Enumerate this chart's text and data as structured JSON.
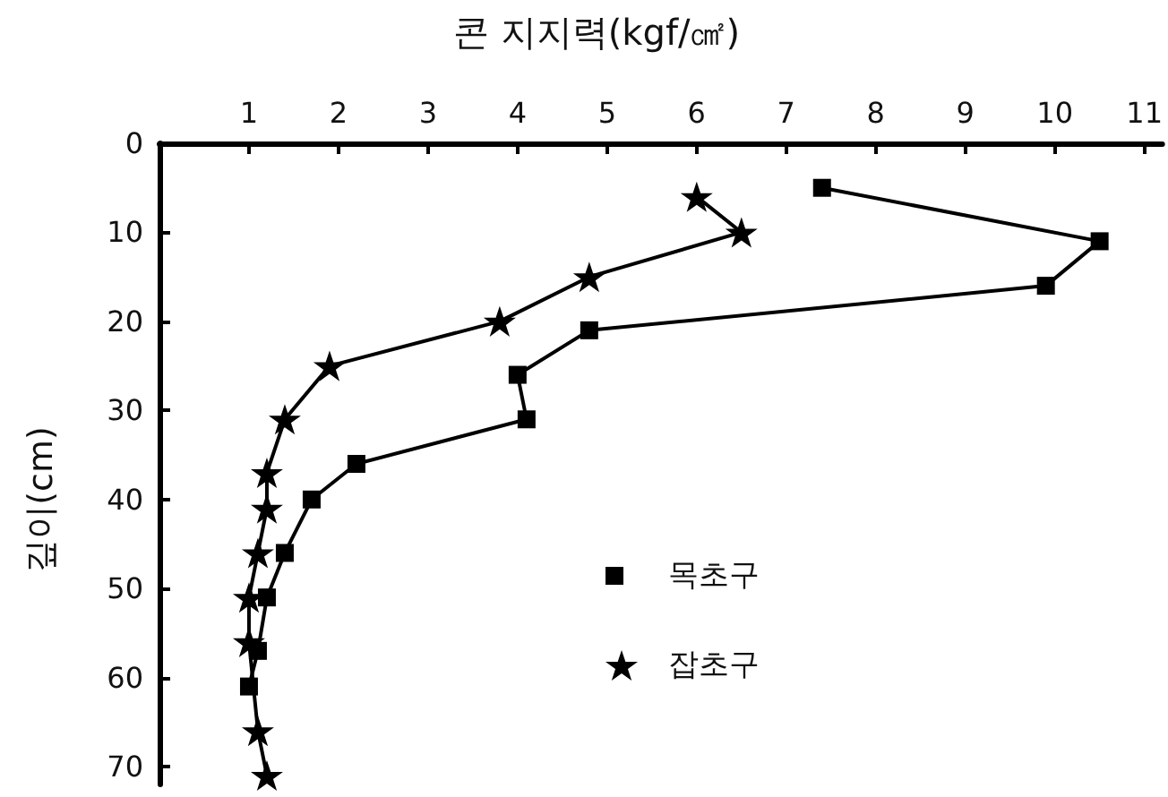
{
  "chart_data": {
    "type": "line",
    "title": "콘 지지력(kgf/㎠)",
    "ylabel": "깊이(cm)",
    "xlim": [
      0,
      11.2
    ],
    "xticks": [
      1,
      2,
      3,
      4,
      5,
      6,
      7,
      8,
      9,
      10,
      11
    ],
    "ylim": [
      72,
      0
    ],
    "yticks": [
      0,
      10,
      20,
      30,
      40,
      50,
      60,
      70
    ],
    "legend": "bottom",
    "line_style": "solid",
    "series": [
      {
        "name": "목초구",
        "color": "#000000",
        "marker": "square",
        "x": [
          7.4,
          10.5,
          9.9,
          4.8,
          4.0,
          4.1,
          2.2,
          1.7,
          1.4,
          1.2,
          1.1,
          1.0
        ],
        "values": [
          5,
          11,
          16,
          21,
          26,
          31,
          36,
          40,
          46,
          51,
          57,
          61
        ]
      },
      {
        "name": "잡초구",
        "color": "#000000",
        "marker": "star",
        "x": [
          6.0,
          6.5,
          4.8,
          3.8,
          1.9,
          1.4,
          1.2,
          1.2,
          1.1,
          1.0,
          1.0,
          1.1,
          1.2
        ],
        "values": [
          6,
          10,
          15,
          20,
          25,
          31,
          37,
          41,
          46,
          51,
          56,
          66,
          71
        ]
      }
    ]
  }
}
